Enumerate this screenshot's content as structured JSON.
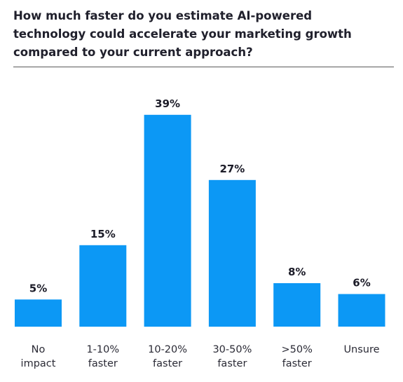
{
  "header": {
    "title_lines": [
      "How much faster do you estimate AI-powered",
      "technology could accelerate your marketing growth",
      "compared to your current approach?"
    ]
  },
  "colors": {
    "bar": "#0c98f5",
    "text": "#1c1c28"
  },
  "chart_data": {
    "type": "bar",
    "title": "How much faster do you estimate AI-powered technology could accelerate your marketing growth compared to your current approach?",
    "categories": [
      [
        "No",
        "impact"
      ],
      [
        "1-10%",
        "faster"
      ],
      [
        "10-20%",
        "faster"
      ],
      [
        "30-50%",
        "faster"
      ],
      [
        ">50%",
        "faster"
      ],
      [
        "Unsure"
      ]
    ],
    "values": [
      5,
      15,
      39,
      27,
      8,
      6
    ],
    "value_labels": [
      "5%",
      "15%",
      "39%",
      "27%",
      "8%",
      "6%"
    ],
    "unit": "%",
    "xlabel": "",
    "ylabel": "",
    "grid": false
  }
}
